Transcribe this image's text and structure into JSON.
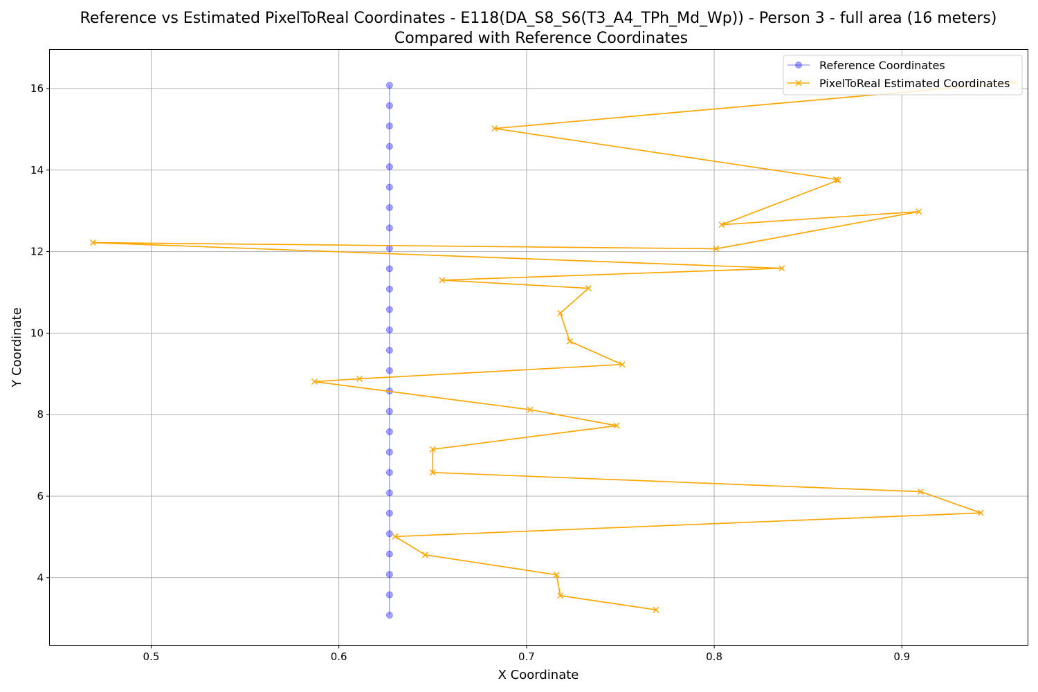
{
  "chart_data": {
    "type": "line",
    "title_line1": "Reference vs Estimated PixelToReal Coordinates - E118(DA_S8_S6(T3_A4_TPh_Md_Wp)) - Person 3 - full area (16 meters)",
    "title_line2": "Compared with Reference Coordinates",
    "xlabel": "X Coordinate",
    "ylabel": "Y Coordinate",
    "xlim": [
      0.446,
      0.967
    ],
    "ylim": [
      2.35,
      16.95
    ],
    "xticks": [
      0.5,
      0.6,
      0.7,
      0.8,
      0.9
    ],
    "xtick_labels": [
      "0.5",
      "0.6",
      "0.7",
      "0.8",
      "0.9"
    ],
    "yticks": [
      4,
      6,
      8,
      10,
      12,
      14,
      16
    ],
    "ytick_labels": [
      "4",
      "6",
      "8",
      "10",
      "12",
      "14",
      "16"
    ],
    "grid": true,
    "legend_position": "top-right",
    "series": [
      {
        "name": "Reference Coordinates",
        "color": "#0000ff",
        "marker": "circle",
        "x": [
          0.627,
          0.627,
          0.627,
          0.627,
          0.627,
          0.627,
          0.627,
          0.627,
          0.627,
          0.627,
          0.627,
          0.627,
          0.627,
          0.627,
          0.627,
          0.627,
          0.627,
          0.627,
          0.627,
          0.627,
          0.627,
          0.627,
          0.627,
          0.627,
          0.627,
          0.627,
          0.627
        ],
        "y": [
          3.08,
          3.58,
          4.08,
          4.58,
          5.08,
          5.58,
          6.08,
          6.58,
          7.08,
          7.58,
          8.08,
          8.58,
          9.08,
          9.58,
          10.08,
          10.58,
          11.08,
          11.58,
          12.08,
          12.58,
          13.08,
          13.58,
          14.08,
          14.58,
          15.08,
          15.58,
          16.08
        ]
      },
      {
        "name": "PixelToReal Estimated Coordinates",
        "color": "#ffa500",
        "marker": "x",
        "x": [
          0.769,
          0.718,
          0.716,
          0.646,
          0.63,
          0.942,
          0.91,
          0.65,
          0.65,
          0.748,
          0.702,
          0.587,
          0.611,
          0.751,
          0.723,
          0.718,
          0.733,
          0.655,
          0.836,
          0.469,
          0.801,
          0.909,
          0.804,
          0.866,
          0.865,
          0.683,
          0.96
        ],
        "y": [
          3.21,
          3.56,
          4.07,
          4.56,
          5.01,
          5.59,
          6.11,
          6.58,
          7.15,
          7.73,
          8.12,
          8.81,
          8.88,
          9.23,
          9.8,
          10.49,
          11.1,
          11.3,
          11.59,
          12.22,
          12.07,
          12.98,
          12.66,
          13.75,
          13.77,
          15.02,
          16.15
        ]
      }
    ]
  }
}
